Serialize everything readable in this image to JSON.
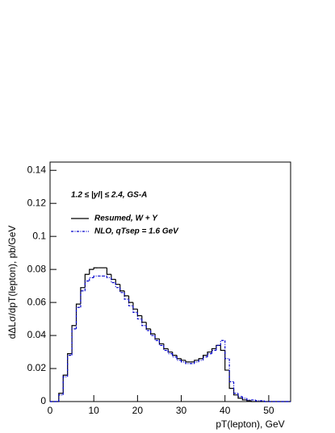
{
  "chart_data": {
    "type": "histogram",
    "annotation": "1.2 ≤ |yl| ≤ 2.4, GS-A",
    "xlabel": "pT(lepton), GeV",
    "ylabel": "dΔLσ/dpT(lepton), pb/GeV",
    "bins": [
      0,
      1,
      2,
      3,
      4,
      5,
      6,
      7,
      8,
      9,
      10,
      11,
      12,
      13,
      14,
      15,
      16,
      17,
      18,
      19,
      20,
      21,
      22,
      23,
      24,
      25,
      26,
      27,
      28,
      29,
      30,
      31,
      32,
      33,
      34,
      35,
      36,
      37,
      38,
      39,
      40,
      41,
      42,
      43,
      44,
      45,
      46,
      47,
      48,
      49,
      50,
      51,
      52,
      53,
      54,
      55
    ],
    "series": [
      {
        "name": "Resumed, W + Y",
        "color": "#000000",
        "dash": "solid",
        "values": [
          0,
          0,
          0.005,
          0.016,
          0.029,
          0.046,
          0.059,
          0.069,
          0.077,
          0.08,
          0.081,
          0.081,
          0.081,
          0.077,
          0.074,
          0.071,
          0.067,
          0.064,
          0.06,
          0.056,
          0.052,
          0.048,
          0.044,
          0.041,
          0.038,
          0.035,
          0.032,
          0.03,
          0.028,
          0.026,
          0.025,
          0.024,
          0.024,
          0.025,
          0.026,
          0.028,
          0.03,
          0.032,
          0.034,
          0.031,
          0.019,
          0.008,
          0.004,
          0.002,
          0.001,
          0.0005,
          0,
          0,
          0,
          0,
          0,
          0,
          0,
          0,
          0
        ]
      },
      {
        "name": "NLO, qTsep = 1.6 GeV",
        "color": "#0000cc",
        "dash": "dotted",
        "values": [
          0,
          0,
          0.004,
          0.015,
          0.028,
          0.044,
          0.057,
          0.067,
          0.073,
          0.075,
          0.076,
          0.076,
          0.076,
          0.075,
          0.072,
          0.069,
          0.066,
          0.062,
          0.058,
          0.054,
          0.05,
          0.046,
          0.043,
          0.04,
          0.037,
          0.034,
          0.031,
          0.029,
          0.027,
          0.025,
          0.024,
          0.023,
          0.023,
          0.024,
          0.025,
          0.027,
          0.029,
          0.031,
          0.034,
          0.037,
          0.026,
          0.012,
          0.005,
          0.003,
          0.002,
          0.001,
          0.001,
          0.0005,
          0.0005,
          0,
          0,
          0,
          0,
          0,
          0
        ]
      }
    ],
    "xlim": [
      0,
      55
    ],
    "ylim": [
      0,
      0.145
    ],
    "xticks": [
      0,
      10,
      20,
      30,
      40,
      50
    ],
    "yticks": [
      0,
      0.02,
      0.04,
      0.06,
      0.08,
      0.1,
      0.12,
      0.14
    ]
  }
}
